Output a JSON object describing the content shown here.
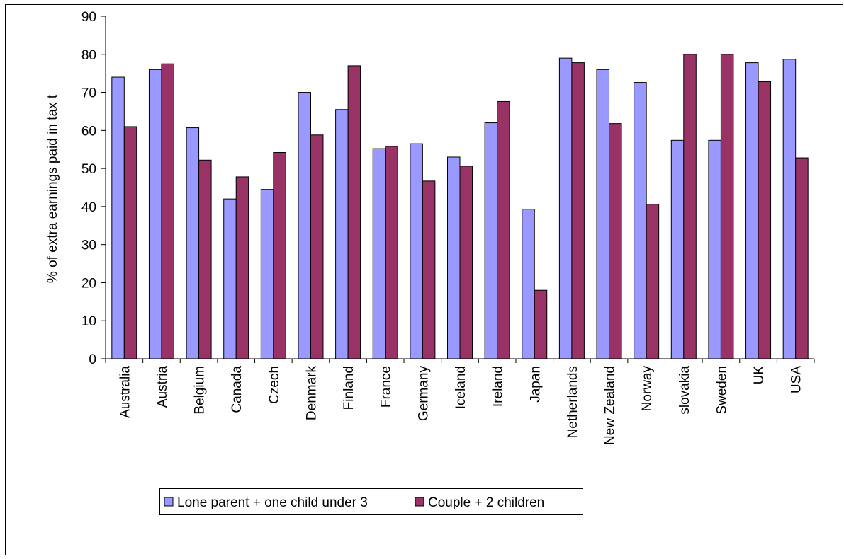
{
  "chart_data": {
    "type": "bar",
    "title": "",
    "ylabel": "% of extra earnings paid in tax t",
    "xlabel": "",
    "ylim": [
      0,
      90
    ],
    "yticks": [
      0,
      10,
      20,
      30,
      40,
      50,
      60,
      70,
      80,
      90
    ],
    "grid": false,
    "legend_position": "bottom",
    "categories": [
      "Australia",
      "Austria",
      "Belgium",
      "Canada",
      "Czech",
      "Denmark",
      "Finland",
      "France",
      "Germany",
      "Iceland",
      "Ireland",
      "Japan",
      "Netherlands",
      "New Zealand",
      "Norway",
      "slovakia",
      "Sweden",
      "UK",
      "USA"
    ],
    "series": [
      {
        "name": "Lone parent + one child under 3",
        "color": "#9999ff",
        "values": [
          74,
          76,
          60.7,
          42,
          44.5,
          70,
          65.5,
          55.2,
          56.5,
          53,
          62,
          39.3,
          79,
          76,
          72.6,
          57.4,
          57.4,
          77.8,
          78.7
        ]
      },
      {
        "name": "Couple + 2 children",
        "color": "#993366",
        "values": [
          61,
          77.5,
          52.2,
          47.8,
          54.2,
          58.8,
          77,
          55.8,
          46.7,
          50.6,
          67.6,
          18,
          77.8,
          61.8,
          40.6,
          80,
          80,
          72.8,
          52.8
        ]
      }
    ]
  }
}
